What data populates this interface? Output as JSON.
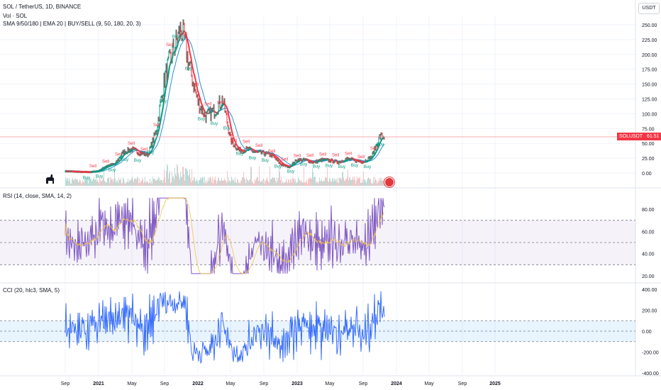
{
  "header": {
    "symbol_line": "SOL / TetherUS, 1D, BINANCE",
    "vol_line": "Vol · SOL",
    "ma_line": "SMA 9/50/180 | EMA 20 | BUY/SELL (9, 50, 180, 20, 3)",
    "currency_button": "USDT"
  },
  "price_tag": {
    "symbol": "SOLUSDT",
    "value": "61.51"
  },
  "colors": {
    "buy": "#089981",
    "sell": "#f23645",
    "rsi": "#7e57c2",
    "cci": "#2962ff",
    "ema": "#2a8fd6"
  },
  "chart_data": [
    {
      "type": "line",
      "title": "SOL / TetherUS, 1D, BINANCE",
      "x": [
        "2020-09",
        "2020-10",
        "2020-11",
        "2020-12",
        "2021-01",
        "2021-02",
        "2021-03",
        "2021-04",
        "2021-05",
        "2021-06",
        "2021-07",
        "2021-08",
        "2021-09",
        "2021-10",
        "2021-11",
        "2021-12",
        "2022-01",
        "2022-02",
        "2022-03",
        "2022-04",
        "2022-05",
        "2022-06",
        "2022-07",
        "2022-08",
        "2022-09",
        "2022-10",
        "2022-11",
        "2022-12",
        "2023-01",
        "2023-02",
        "2023-03",
        "2023-04",
        "2023-05",
        "2023-06",
        "2023-07",
        "2023-08",
        "2023-09",
        "2023-10",
        "2023-11"
      ],
      "series": [
        {
          "values": [
            3,
            2.5,
            1.8,
            1.6,
            3,
            12,
            15,
            35,
            40,
            34,
            31,
            72,
            160,
            205,
            245,
            180,
            120,
            95,
            105,
            125,
            55,
            38,
            40,
            35,
            33,
            30,
            15,
            10,
            22,
            22,
            18,
            22,
            21,
            18,
            24,
            21,
            19,
            27,
            61.5
          ]
        }
      ],
      "y_ticks": [
        "250.00",
        "225.00",
        "200.00",
        "175.00",
        "150.00",
        "125.00",
        "100.00",
        "75.00",
        "50.00",
        "25.00",
        "0.00"
      ],
      "x_ticks": [
        "Sep",
        "2021",
        "May",
        "Sep",
        "2022",
        "May",
        "Sep",
        "2023",
        "May",
        "Sep",
        "2024",
        "May",
        "Sep",
        "2025"
      ],
      "annotations": [
        "Sell",
        "Buy"
      ]
    },
    {
      "type": "line",
      "title": "RSI (14, close, SMA, 14, 2)",
      "y_ticks": [
        "80.00",
        "60.00",
        "40.00",
        "20.00"
      ],
      "bands": [
        30,
        70
      ],
      "ylim": [
        20,
        90
      ]
    },
    {
      "type": "line",
      "title": "CCI (20, hlc3, SMA, 5)",
      "y_ticks": [
        "400.00",
        "200.00",
        "0.00",
        "-200.00",
        "-400.00"
      ],
      "bands": [
        -100,
        100
      ],
      "ylim": [
        -420,
        420
      ]
    }
  ]
}
